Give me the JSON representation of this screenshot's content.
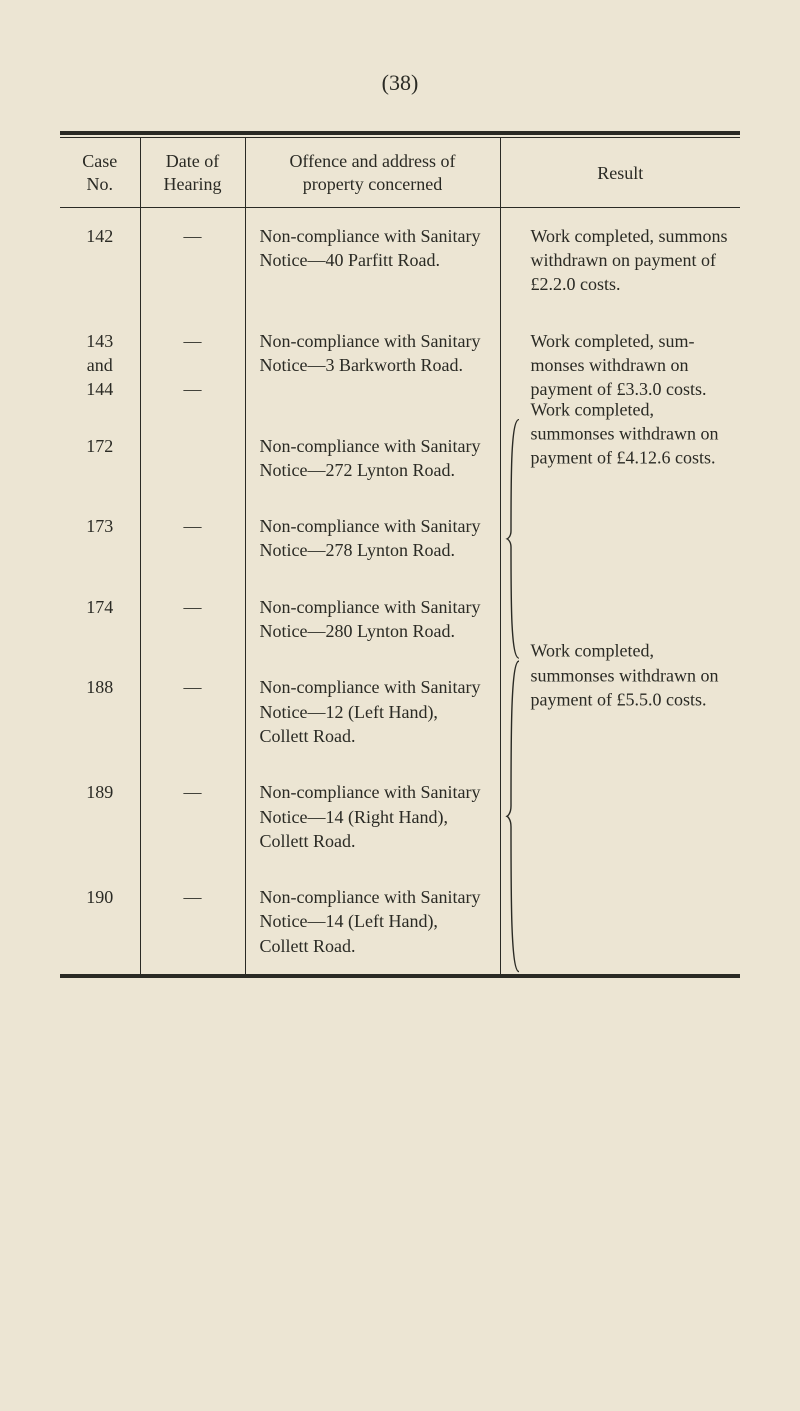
{
  "page_number_label": "(38)",
  "headers": {
    "case": "Case\nNo.",
    "date": "Date of\nHearing",
    "offence": "Offence and address of\nproperty concerned",
    "result": "Result"
  },
  "rows": [
    {
      "case": "142",
      "date": "—",
      "offence": "Non-compliance with Sanitary Notice—40 Parfitt Road.",
      "result": "Work completed, sum­mons withdrawn on payment of £2.2.0 costs."
    },
    {
      "case": "143\nand\n144",
      "date": "—\n\n—",
      "offence": "Non-compliance with Sanitary Notice—3 Barkworth Road.",
      "result": "Work completed, sum­monses withdrawn on payment of £3.3.0 costs."
    },
    {
      "case": "172",
      "date": "",
      "offence": "Non-compliance with Sanitary Notice—272 Lynton Road.",
      "group_start": true
    },
    {
      "case": "173",
      "date": "—",
      "offence": "Non-compliance with Sanitary Notice—278 Lynton Road.",
      "group_result": "Work completed, summonses with­drawn on payment of £4.12.6 costs."
    },
    {
      "case": "174",
      "date": "—",
      "offence": "Non-compliance with Sanitary Notice—280 Lynton Road.",
      "group_end": true
    },
    {
      "case": "188",
      "date": "—",
      "offence": "Non-compliance with Sanitary Notice—12 (Left Hand), Collett Road.",
      "group_start": true
    },
    {
      "case": "189",
      "date": "—",
      "offence": "Non-compliance with Sanitary Notice—14 (Right Hand), Collett Road.",
      "group_result": "Work completed, summonses with­drawn on payment of £5.5.0 costs."
    },
    {
      "case": "190",
      "date": "—",
      "offence": "Non-compliance with Sanitary Notice—14 (Left Hand), Collett Road.",
      "group_end": true
    }
  ],
  "colors": {
    "background": "#ece5d3",
    "text": "#2a2a24",
    "rule": "#2a2a24"
  }
}
